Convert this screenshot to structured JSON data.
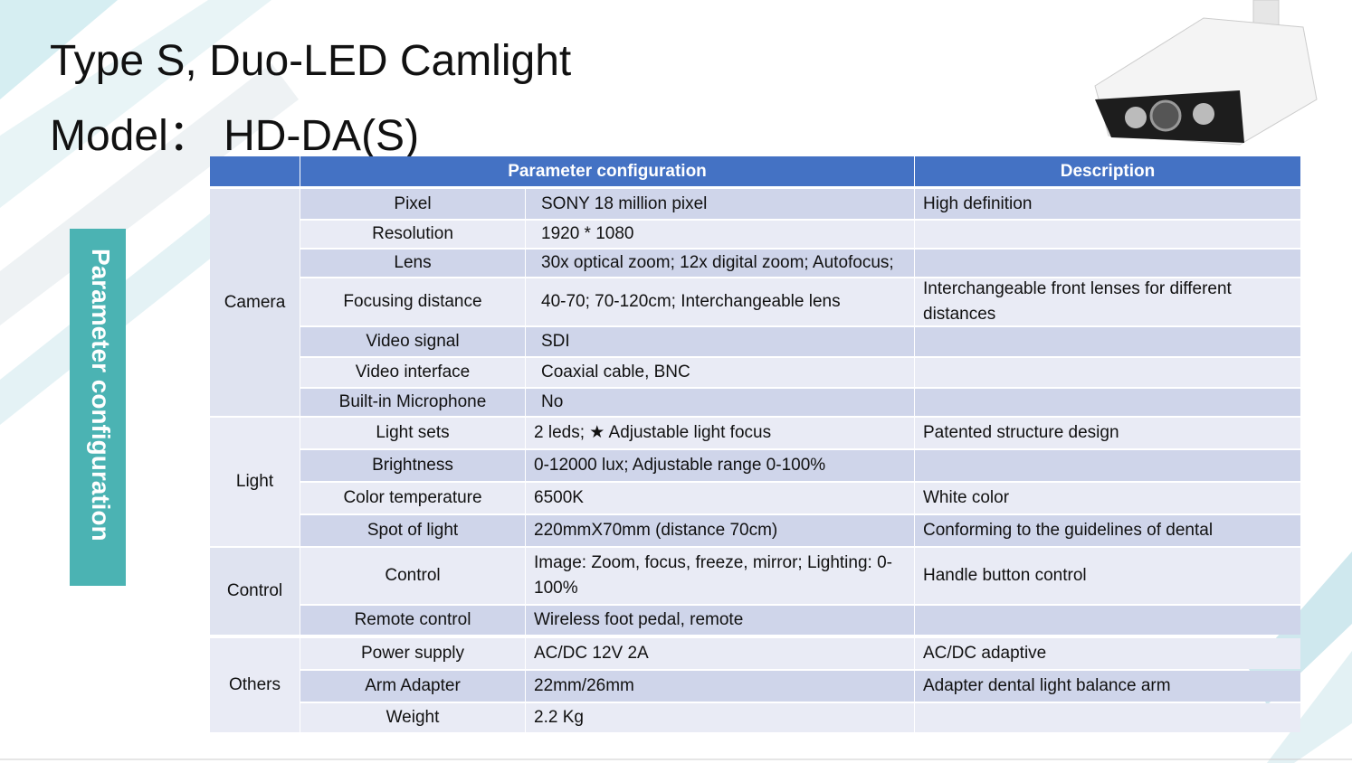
{
  "title": [
    "Type S, Duo-LED Camlight",
    "Model：  HD-DA(S)"
  ],
  "side_label": "Parameter configuration",
  "table": {
    "header": [
      "Parameter configuration",
      "Description"
    ],
    "groups": [
      {
        "name": "Camera",
        "rows": [
          [
            "Pixel",
            "SONY 18 million pixel",
            "High definition"
          ],
          [
            "Resolution",
            "1920 * 1080"
          ],
          [
            "Lens",
            "30x optical zoom; 12x digital zoom; Autofocus;"
          ],
          [
            "Focusing distance",
            "40-70; 70-120cm; Interchangeable lens",
            "Interchangeable front lenses for different distances"
          ],
          [
            "Video signal",
            "SDI"
          ],
          [
            "Video interface",
            "Coaxial cable, BNC"
          ],
          [
            "Built-in Microphone",
            "No"
          ]
        ]
      },
      {
        "name": "Light",
        "rows": [
          [
            "Light sets",
            "2 leds; ★ Adjustable light focus",
            "Patented structure design"
          ],
          [
            "Brightness",
            "0-12000 lux; Adjustable range 0-100%"
          ],
          [
            "Color temperature",
            "6500K",
            "White color"
          ],
          [
            "Spot of light",
            "220mmX70mm (distance 70cm)",
            "Conforming to the guidelines of dental"
          ]
        ]
      },
      {
        "name": "Control",
        "rows": [
          [
            "Control",
            "Image: Zoom, focus, freeze, mirror; Lighting: 0-100%",
            "Handle button control"
          ],
          [
            "Remote control",
            "Wireless foot pedal, remote"
          ]
        ]
      },
      {
        "name": "Others",
        "rows": [
          [
            "Power supply",
            "AC/DC 12V 2A",
            "AC/DC adaptive"
          ],
          [
            "Arm Adapter",
            "22mm/26mm",
            "Adapter dental light balance arm"
          ],
          [
            "Weight",
            "2.2 Kg"
          ]
        ]
      }
    ]
  }
}
